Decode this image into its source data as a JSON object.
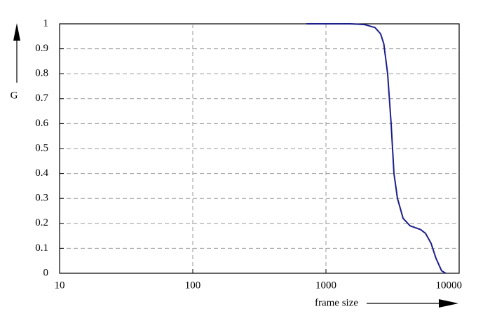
{
  "chart_data": {
    "type": "line",
    "x_label": "frame size",
    "y_label": "G",
    "xscale": "log",
    "x": [
      713,
      1528,
      1946,
      2335,
      2570,
      2718,
      2904,
      3085,
      3240,
      3443,
      3796,
      4283,
      5140,
      5590,
      6155,
      6700,
      7380,
      7943
    ],
    "series": [
      {
        "name": "G",
        "color": "#1c1f8a",
        "values": [
          1,
          1,
          0.997,
          0.985,
          0.96,
          0.92,
          0.8,
          0.6,
          0.4,
          0.3,
          0.22,
          0.19,
          0.175,
          0.16,
          0.12,
          0.06,
          0.01,
          0
        ]
      }
    ],
    "xlim": [
      10,
      10000
    ],
    "xticks": [
      10,
      100,
      1000,
      10000
    ],
    "ylim": [
      0,
      1
    ],
    "yticks": [
      0,
      0.1,
      0.2,
      0.3,
      0.4,
      0.5,
      0.6,
      0.7,
      0.8,
      0.9,
      1
    ],
    "grid": true
  }
}
